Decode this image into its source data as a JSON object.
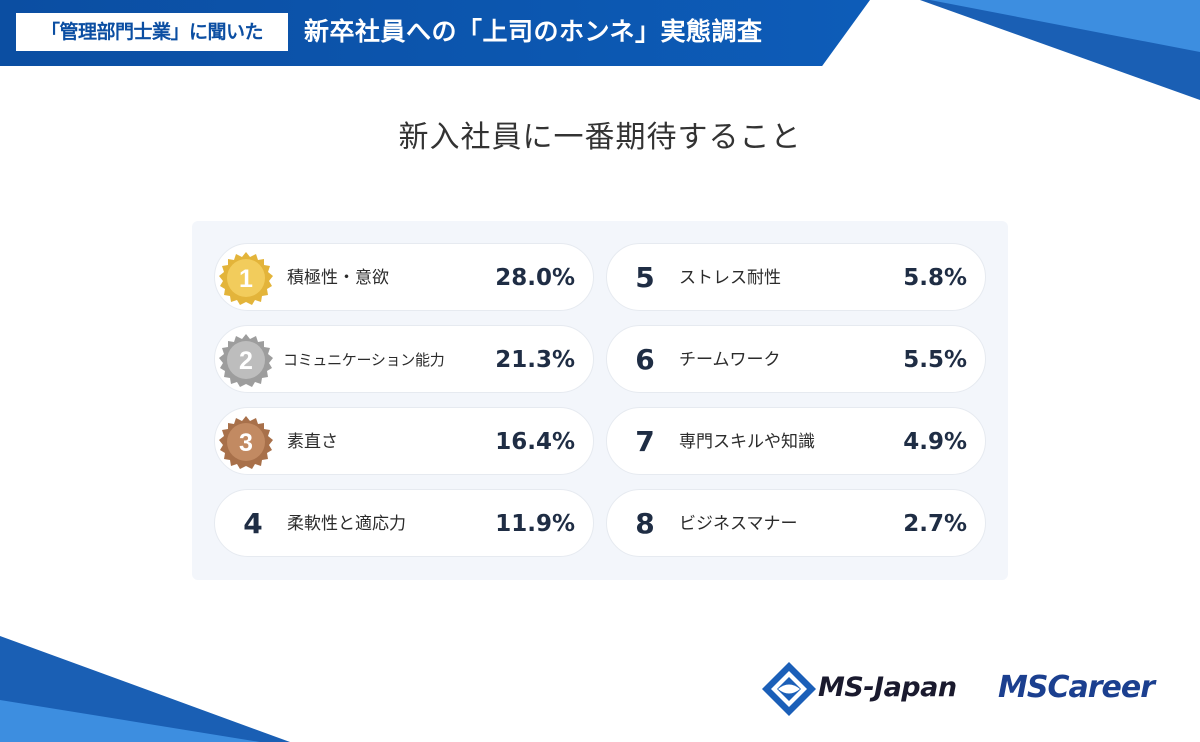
{
  "header": {
    "tag": "「管理部門士業」に聞いた",
    "title": "新卒社員への「上司のホンネ」実態調査"
  },
  "page_title": "新入社員に一番期待すること",
  "ranking": [
    {
      "rank": "1",
      "label": "積極性・意欲",
      "value": "28.0%",
      "medal": "gold"
    },
    {
      "rank": "2",
      "label": "コミュニケーション能力",
      "value": "21.3%",
      "medal": "silver"
    },
    {
      "rank": "3",
      "label": "素直さ",
      "value": "16.4%",
      "medal": "bronze"
    },
    {
      "rank": "4",
      "label": "柔軟性と適応力",
      "value": "11.9%"
    },
    {
      "rank": "5",
      "label": "ストレス耐性",
      "value": "5.8%"
    },
    {
      "rank": "6",
      "label": "チームワーク",
      "value": "5.5%"
    },
    {
      "rank": "7",
      "label": "専門スキルや知識",
      "value": "4.9%"
    },
    {
      "rank": "8",
      "label": "ビジネスマナー",
      "value": "2.7%"
    }
  ],
  "colors": {
    "gold": "#e3b43a",
    "silver": "#a8a8a8",
    "bronze": "#b77a52",
    "brand_blue": "#0b4ea2"
  },
  "logos": {
    "ms_japan": "MS-Japan",
    "ms_career": "MSCareer"
  }
}
